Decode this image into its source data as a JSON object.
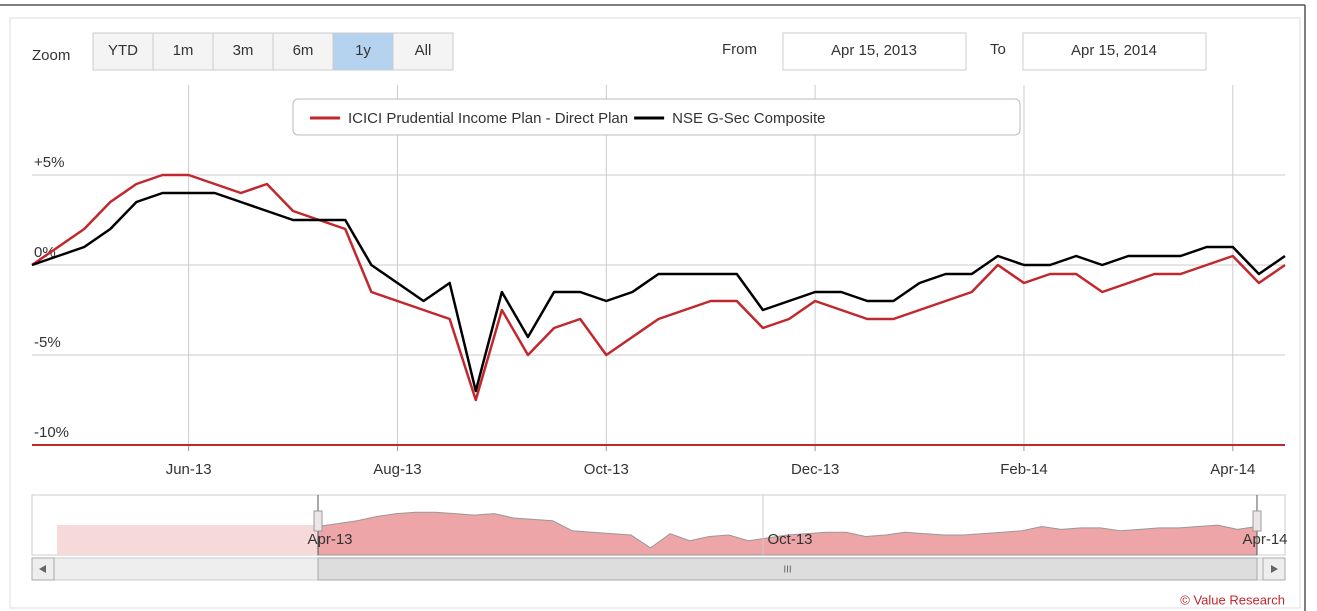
{
  "zoom": {
    "label": "Zoom",
    "buttons": [
      "YTD",
      "1m",
      "3m",
      "6m",
      "1y",
      "All"
    ],
    "selected": 4
  },
  "range": {
    "from_label": "From",
    "from": "Apr 15, 2013",
    "to_label": "To",
    "to": "Apr 15, 2014"
  },
  "navigator": {
    "labels": [
      "Apr-13",
      "Oct-13",
      "Apr-14"
    ],
    "scrollbar": "III"
  },
  "credit": "© Value Research",
  "chart_data": {
    "type": "line",
    "categories": [
      null,
      null,
      null,
      null,
      null,
      null,
      "Jun-13",
      null,
      null,
      null,
      null,
      null,
      null,
      null,
      "Aug-13",
      null,
      null,
      null,
      null,
      null,
      null,
      null,
      "Oct-13",
      null,
      null,
      null,
      null,
      null,
      null,
      null,
      "Dec-13",
      null,
      null,
      null,
      null,
      null,
      null,
      null,
      "Feb-14",
      null,
      null,
      null,
      null,
      null,
      null,
      null,
      "Apr-14",
      null,
      null
    ],
    "series": [
      {
        "name": "ICICI Prudential Income Plan - Direct Plan",
        "color": "#c0282d",
        "values": [
          0,
          1,
          2,
          3.5,
          4.5,
          5,
          5,
          4.5,
          4,
          4.5,
          3,
          2.5,
          2,
          -1.5,
          -2,
          -2.5,
          -3,
          -7.5,
          -2.5,
          -5,
          -3.5,
          -3,
          -5,
          -4,
          -3,
          -2.5,
          -2,
          -2,
          -3.5,
          -3,
          -2,
          -2.5,
          -3,
          -3,
          -2.5,
          -2,
          -1.5,
          0,
          -1,
          -0.5,
          -0.5,
          -1.5,
          -1,
          -0.5,
          -0.5,
          0,
          0.5,
          -1,
          0
        ]
      },
      {
        "name": "NSE G-Sec Composite",
        "color": "#000000",
        "values": [
          0,
          0.5,
          1,
          2,
          3.5,
          4,
          4,
          4,
          3.5,
          3,
          2.5,
          2.5,
          2.5,
          0,
          -1,
          -2,
          -1,
          -7,
          -1.5,
          -4,
          -1.5,
          -1.5,
          -2,
          -1.5,
          -0.5,
          -0.5,
          -0.5,
          -0.5,
          -2.5,
          -2,
          -1.5,
          -1.5,
          -2,
          -2,
          -1,
          -0.5,
          -0.5,
          0.5,
          0,
          0,
          0.5,
          0,
          0.5,
          0.5,
          0.5,
          1,
          1,
          -0.5,
          0.5
        ]
      }
    ],
    "ylim": [
      -10,
      10
    ],
    "yticks": [
      {
        "value": 5,
        "label": "+5%"
      },
      {
        "value": 0,
        "label": "0%"
      },
      {
        "value": -5,
        "label": "-5%"
      },
      {
        "value": -10,
        "label": "-10%"
      }
    ],
    "grid": true
  }
}
